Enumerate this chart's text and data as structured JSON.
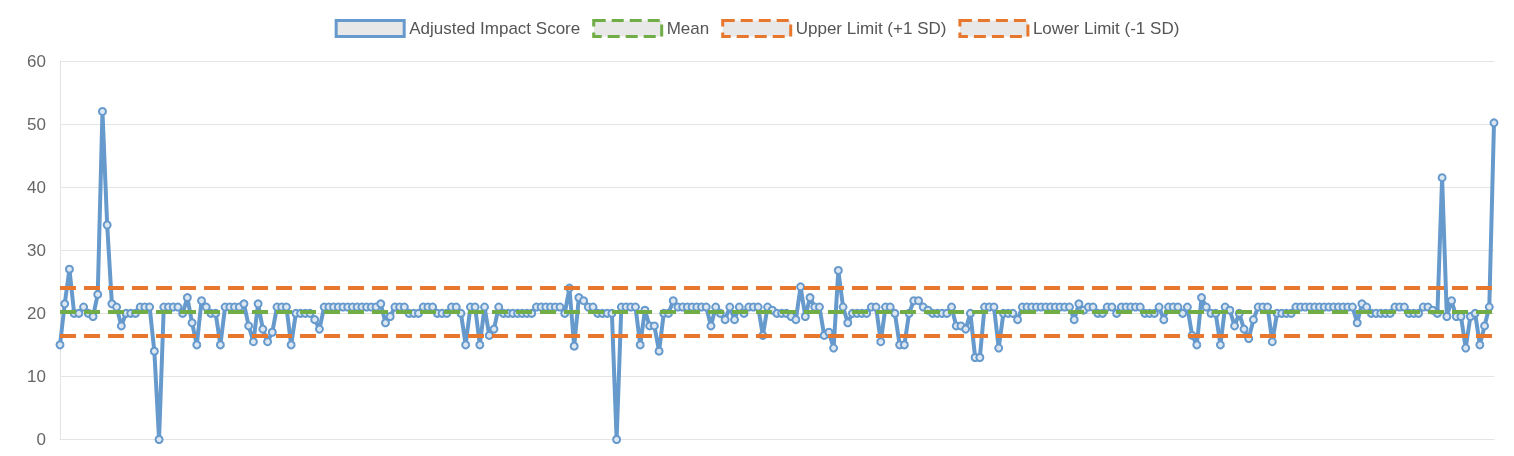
{
  "chart_data": {
    "type": "line",
    "categories": [
      null,
      null,
      null,
      null,
      null,
      null,
      null,
      null,
      null,
      null,
      null,
      null,
      null,
      null,
      null,
      null,
      null,
      null,
      null,
      null,
      null,
      null,
      null,
      null,
      null,
      null,
      null,
      null,
      null,
      null,
      null,
      null,
      null,
      null,
      null,
      null,
      null,
      null,
      null,
      null,
      null,
      null,
      null,
      null,
      null,
      null,
      null,
      null,
      null,
      null,
      null,
      null,
      null,
      null,
      null,
      null,
      null,
      null,
      null,
      null,
      null,
      null,
      null,
      null,
      null,
      null,
      null,
      null,
      null,
      null,
      null,
      null,
      null,
      null,
      null,
      null,
      null,
      null,
      null,
      null,
      null,
      null,
      null,
      null,
      null,
      null,
      null,
      null,
      null,
      null,
      null,
      null,
      null,
      null,
      null,
      null,
      null,
      null,
      null,
      null,
      null,
      null,
      null,
      null,
      null,
      null,
      null,
      null,
      null,
      null,
      null,
      null,
      null,
      null,
      null,
      null,
      null,
      null,
      null,
      null,
      null,
      null,
      null,
      null,
      null,
      null,
      null,
      null,
      null,
      null,
      null,
      null,
      null,
      null,
      null,
      null,
      null,
      null,
      null,
      null,
      null,
      null,
      null,
      null,
      null,
      null,
      null,
      null,
      null,
      null,
      null,
      null,
      null,
      null,
      null,
      null,
      null,
      null,
      null,
      null,
      null,
      null,
      null,
      null,
      null,
      null,
      null,
      null,
      null,
      null,
      null,
      null,
      null,
      null,
      null,
      null,
      null,
      null,
      null,
      null,
      null,
      null,
      null,
      null,
      null,
      null,
      null,
      null,
      null,
      null,
      null,
      null,
      null,
      null,
      null,
      null,
      null,
      null,
      null,
      null,
      null,
      null,
      null,
      null,
      null,
      null,
      null,
      null,
      null,
      null,
      null,
      null,
      null,
      null,
      null,
      null,
      null,
      null,
      null,
      null,
      null,
      null,
      null,
      null,
      null,
      null,
      null,
      null,
      null,
      null,
      null,
      null,
      null,
      null,
      null,
      null,
      null,
      null,
      null,
      null,
      null,
      null,
      null,
      null,
      null,
      null,
      null,
      null,
      null,
      null,
      null,
      null,
      null,
      null,
      null,
      null,
      null,
      null,
      null,
      null,
      null,
      null,
      null,
      null,
      null,
      null,
      null,
      null,
      null,
      null,
      null,
      null,
      null,
      null,
      null,
      null,
      null,
      null,
      null,
      null,
      null,
      null,
      null,
      null,
      null,
      null,
      null,
      null,
      null,
      null,
      null,
      null,
      null,
      null,
      null,
      null,
      null,
      null,
      null,
      null,
      null,
      null,
      null,
      null,
      null
    ],
    "series": [
      {
        "name": "Adjusted Impact Score",
        "color": "#6699cc",
        "values": [
          15,
          21.5,
          27,
          20,
          20,
          21,
          20,
          19.5,
          23,
          52,
          34,
          21.5,
          21,
          18,
          20,
          20,
          20,
          21,
          21,
          21,
          14,
          0,
          21,
          21,
          21,
          21,
          20,
          22.5,
          18.5,
          15,
          22,
          21,
          20,
          20,
          15,
          21,
          21,
          21,
          21,
          21.5,
          18,
          15.5,
          21.5,
          17.5,
          15.5,
          17,
          21,
          21,
          21,
          15,
          20,
          20,
          20,
          20,
          19,
          17.5,
          21,
          21,
          21,
          21,
          21,
          21,
          21,
          21,
          21,
          21,
          21,
          21,
          21.5,
          18.5,
          19.5,
          21,
          21,
          21,
          20,
          20,
          20,
          21,
          21,
          21,
          20,
          20,
          20,
          21,
          21,
          20,
          15,
          21,
          21,
          15,
          21,
          16.5,
          17.5,
          21,
          20,
          20,
          20,
          20,
          20,
          20,
          20,
          21,
          21,
          21,
          21,
          21,
          21,
          20,
          24,
          14.8,
          22.5,
          22,
          21,
          21,
          20,
          20,
          20,
          20,
          0,
          21,
          21,
          21,
          21,
          15,
          20.5,
          18,
          18,
          14,
          20,
          20,
          22,
          21,
          21,
          21,
          21,
          21,
          21,
          21,
          18,
          21,
          20,
          19,
          21,
          19,
          21,
          20,
          21,
          21,
          21,
          16.5,
          21,
          20.5,
          20,
          20,
          20,
          19.5,
          19,
          24.2,
          19.5,
          22.5,
          21,
          21,
          16.5,
          17,
          14.5,
          26.8,
          21,
          18.5,
          20,
          20,
          20,
          20,
          21,
          21,
          15.5,
          21,
          21,
          20,
          15,
          15,
          20,
          22,
          22,
          21,
          20.5,
          20,
          20,
          20,
          20,
          21,
          18,
          18,
          17.5,
          20,
          13,
          13,
          21,
          21,
          21,
          14.5,
          20,
          20,
          20,
          19,
          21,
          21,
          21,
          21,
          21,
          21,
          21,
          21,
          21,
          21,
          21,
          19,
          21.5,
          20.5,
          21,
          21,
          20,
          20,
          21,
          21,
          20,
          21,
          21,
          21,
          21,
          21,
          20,
          20,
          20,
          21,
          19,
          21,
          21,
          21,
          20,
          21,
          16.5,
          15,
          22.5,
          21,
          20,
          20,
          15,
          21,
          20.5,
          18,
          20,
          17.5,
          16,
          19,
          21,
          21,
          21,
          15.5,
          20,
          20,
          20,
          20,
          21,
          21,
          21,
          21,
          21,
          21,
          21,
          21,
          21,
          21,
          21,
          21,
          21,
          18.5,
          21.5,
          21,
          20,
          20,
          20,
          20,
          20,
          21,
          21,
          21,
          20,
          20,
          20,
          21,
          21,
          20.5,
          20,
          41.5,
          19.5,
          22,
          19.5,
          19.5,
          14.5,
          19.5,
          20,
          15,
          18,
          21,
          50.2
        ]
      }
    ],
    "ref_lines": [
      {
        "axis": "y",
        "value": 20.2,
        "label": "Mean",
        "color": "#70ad47",
        "line_style": "dashed"
      },
      {
        "axis": "y",
        "value": 24,
        "label": "Upper Limit (+1 SD)",
        "color": "#e8772e",
        "line_style": "dashed"
      },
      {
        "axis": "y",
        "value": 16.4,
        "label": "Lower Limit (-1 SD)",
        "color": "#e8772e",
        "line_style": "dashed"
      }
    ],
    "ylim": [
      0,
      60
    ],
    "yticks": [
      0,
      10,
      20,
      30,
      40,
      50,
      60
    ],
    "grid": "y",
    "legend": "top",
    "marker": "circle",
    "line_style": "solid",
    "tick_labels": "y"
  }
}
